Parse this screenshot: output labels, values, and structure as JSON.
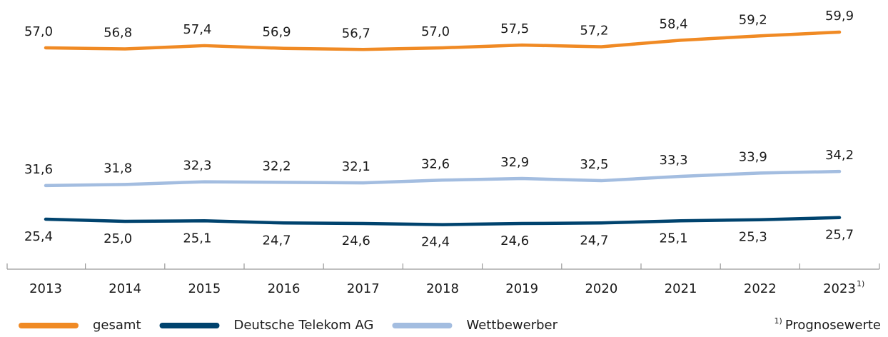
{
  "chart_data": {
    "type": "line",
    "categories": [
      "2013",
      "2014",
      "2015",
      "2016",
      "2017",
      "2018",
      "2019",
      "2020",
      "2021",
      "2022",
      "2023"
    ],
    "series": [
      {
        "name": "gesamt",
        "color": "#f08a24",
        "label_position": "above",
        "values": [
          57.0,
          56.8,
          57.4,
          56.9,
          56.7,
          57.0,
          57.5,
          57.2,
          58.4,
          59.2,
          59.9
        ],
        "value_labels": [
          "57,0",
          "56,8",
          "57,4",
          "56,9",
          "56,7",
          "57,0",
          "57,5",
          "57,2",
          "58,4",
          "59,2",
          "59,9"
        ]
      },
      {
        "name": "Deutsche Telekom AG",
        "color": "#00436e",
        "label_position": "below",
        "values": [
          25.4,
          25.0,
          25.1,
          24.7,
          24.6,
          24.4,
          24.6,
          24.7,
          25.1,
          25.3,
          25.7
        ],
        "value_labels": [
          "25,4",
          "25,0",
          "25,1",
          "24,7",
          "24,6",
          "24,4",
          "24,6",
          "24,7",
          "25,1",
          "25,3",
          "25,7"
        ]
      },
      {
        "name": "Wettbewerber",
        "color": "#a3bde0",
        "label_position": "above",
        "values": [
          31.6,
          31.8,
          32.3,
          32.2,
          32.1,
          32.6,
          32.9,
          32.5,
          33.3,
          33.9,
          34.2
        ],
        "value_labels": [
          "31,6",
          "31,8",
          "32,3",
          "32,2",
          "32,1",
          "32,6",
          "32,9",
          "32,5",
          "33,3",
          "33,9",
          "34,2"
        ]
      }
    ],
    "ylim": [
      20,
      62
    ],
    "footnote": {
      "marker": "1)",
      "text": "Prognosewerte"
    }
  }
}
